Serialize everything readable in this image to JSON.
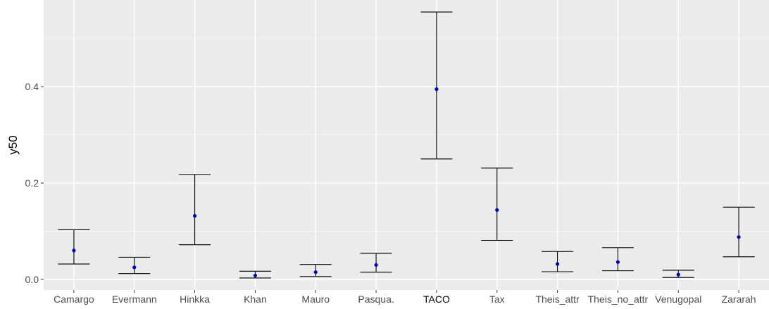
{
  "chart_data": {
    "type": "errorbar",
    "title": "",
    "xlabel": "",
    "ylabel": "y50",
    "ylim": [
      -0.022,
      0.58
    ],
    "yticks": [
      0.0,
      0.2,
      0.4
    ],
    "ytick_labels": [
      "0.0",
      "0.2",
      "0.4"
    ],
    "grid": true,
    "legend": "none",
    "colors": {
      "panel": "#EBEBEB",
      "grid_major": "#FFFFFF",
      "grid_minor": "#F6F6F6",
      "errorbar": "#000000",
      "point": "#0000CD"
    },
    "highlight_category": "TACO",
    "categories": [
      "Camargo",
      "Evermann",
      "Hinkka",
      "Khan",
      "Mauro",
      "Pasqua.",
      "TACO",
      "Tax",
      "Theis_attr",
      "Theis_no_attr",
      "Venugopal",
      "Zararah"
    ],
    "series": [
      {
        "values": [
          0.06,
          0.025,
          0.132,
          0.008,
          0.015,
          0.03,
          0.395,
          0.144,
          0.032,
          0.036,
          0.01,
          0.088
        ],
        "lower": [
          0.032,
          0.012,
          0.072,
          0.003,
          0.006,
          0.015,
          0.25,
          0.081,
          0.016,
          0.018,
          0.004,
          0.047
        ],
        "upper": [
          0.103,
          0.046,
          0.218,
          0.017,
          0.031,
          0.054,
          0.555,
          0.231,
          0.058,
          0.066,
          0.019,
          0.15
        ]
      }
    ]
  }
}
